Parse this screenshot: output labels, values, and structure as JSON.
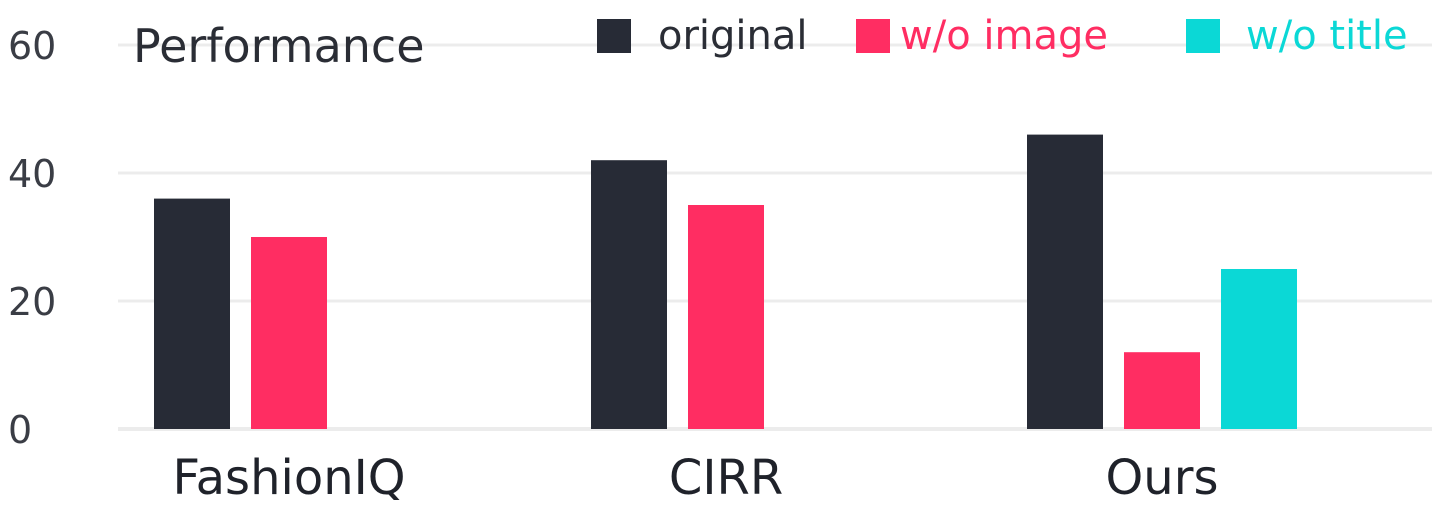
{
  "chart_data": {
    "type": "bar",
    "title": "Performance",
    "categories": [
      "FashionIQ",
      "CIRR",
      "Ours"
    ],
    "series": [
      {
        "name": "original",
        "color": "#272b36",
        "values": [
          36,
          42,
          46
        ]
      },
      {
        "name": "w/o image",
        "color": "#ff2d62",
        "values": [
          30,
          35,
          12
        ]
      },
      {
        "name": "w/o title",
        "color": "#0bd8d6",
        "values": [
          null,
          null,
          25
        ]
      }
    ],
    "yticks": [
      0,
      20,
      40,
      60
    ],
    "ylim": [
      0,
      60
    ],
    "grid": true,
    "legend_position": "top"
  }
}
